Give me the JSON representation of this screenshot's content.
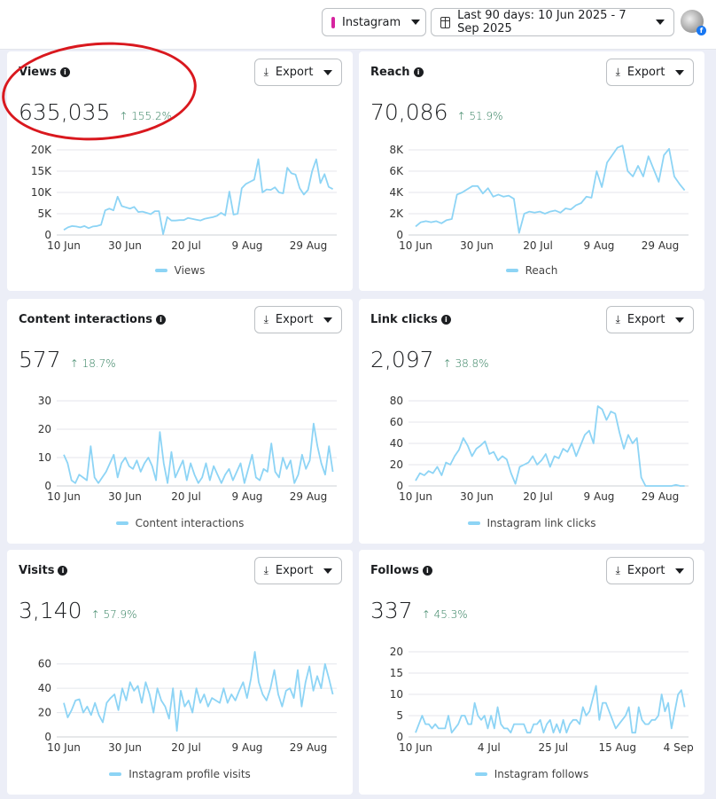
{
  "topbar": {
    "platform": "Instagram",
    "date_range": "Last 90 days: 10 Jun 2025 - 7 Sep 2025"
  },
  "export_label": "Export",
  "line_color": "#8dd4f5",
  "cards": [
    {
      "title": "Views",
      "value": "635,035",
      "delta": "↑ 155.2%",
      "legend": "Views",
      "chart_data": {
        "type": "line",
        "yticks": [
          "0",
          "5K",
          "10K",
          "15K",
          "20K"
        ],
        "ylim": [
          0,
          20
        ],
        "xticks": [
          "10 Jun",
          "30 Jun",
          "20 Jul",
          "9 Aug",
          "29 Aug"
        ],
        "xtick_days": [
          0,
          20,
          40,
          60,
          80
        ],
        "values": [
          1.2,
          1.8,
          2.1,
          2.0,
          1.8,
          2.1,
          1.6,
          2.0,
          2.1,
          2.4,
          5.8,
          6.2,
          5.8,
          9.0,
          6.8,
          6.5,
          6.2,
          6.6,
          5.4,
          5.5,
          5.2,
          4.9,
          5.6,
          5.6,
          0.2,
          4.2,
          3.4,
          3.4,
          3.5,
          3.5,
          4.0,
          3.8,
          3.6,
          3.4,
          3.8,
          4.0,
          4.2,
          4.5,
          5.2,
          4.6,
          10.2,
          4.8,
          5.0,
          11.0,
          12.0,
          12.5,
          13.0,
          17.8,
          10.0,
          10.7,
          10.6,
          11.2,
          10.0,
          9.8,
          15.8,
          14.5,
          14.2,
          11.0,
          9.5,
          10.6,
          15.0,
          17.8,
          12.2,
          14.3,
          11.3,
          10.8
        ]
      }
    },
    {
      "title": "Reach",
      "value": "70,086",
      "delta": "↑ 51.9%",
      "legend": "Reach",
      "chart_data": {
        "type": "line",
        "yticks": [
          "0",
          "2K",
          "4K",
          "6K",
          "8K"
        ],
        "ylim": [
          0,
          8
        ],
        "xticks": [
          "10 Jun",
          "30 Jun",
          "20 Jul",
          "9 Aug",
          "29 Aug"
        ],
        "xtick_days": [
          0,
          20,
          40,
          60,
          80
        ],
        "values": [
          0.8,
          1.2,
          1.3,
          1.2,
          1.3,
          1.1,
          1.4,
          1.5,
          3.8,
          4.0,
          4.3,
          4.6,
          4.6,
          3.9,
          4.4,
          3.6,
          3.8,
          3.6,
          3.7,
          3.4,
          0.2,
          2.0,
          2.2,
          2.1,
          2.2,
          2.0,
          2.2,
          2.3,
          2.1,
          2.5,
          2.4,
          2.8,
          3.0,
          3.6,
          3.5,
          6.0,
          4.5,
          6.8,
          7.5,
          8.2,
          8.4,
          6.0,
          5.5,
          6.5,
          5.5,
          7.4,
          6.2,
          5.0,
          7.5,
          8.1,
          5.5,
          4.8,
          4.2
        ]
      }
    },
    {
      "title": "Content interactions",
      "value": "577",
      "delta": "↑ 18.7%",
      "legend": "Content interactions",
      "chart_data": {
        "type": "line",
        "yticks": [
          "0",
          "10",
          "20",
          "30"
        ],
        "ylim": [
          0,
          30
        ],
        "xticks": [
          "10 Jun",
          "30 Jun",
          "20 Jul",
          "9 Aug",
          "29 Aug"
        ],
        "xtick_days": [
          0,
          20,
          40,
          60,
          80
        ],
        "values": [
          11,
          8,
          2,
          1,
          4,
          3,
          2,
          14,
          3,
          1,
          3,
          5,
          8,
          11,
          3,
          8,
          10,
          7,
          6,
          9,
          5,
          8,
          10,
          7,
          2,
          19,
          8,
          1,
          12,
          3,
          6,
          9,
          2,
          8,
          4,
          1,
          3,
          8,
          2,
          7,
          4,
          1,
          4,
          6,
          2,
          5,
          8,
          1,
          6,
          11,
          3,
          2,
          6,
          5,
          15,
          5,
          3,
          10,
          6,
          9,
          1,
          4,
          11,
          6,
          9,
          22,
          14,
          8,
          4,
          14,
          5
        ]
      }
    },
    {
      "title": "Link clicks",
      "value": "2,097",
      "delta": "↑ 38.8%",
      "legend": "Instagram link clicks",
      "chart_data": {
        "type": "line",
        "yticks": [
          "0",
          "20",
          "40",
          "60",
          "80"
        ],
        "ylim": [
          0,
          80
        ],
        "xticks": [
          "10 Jun",
          "30 Jun",
          "20 Jul",
          "9 Aug",
          "29 Aug"
        ],
        "xtick_days": [
          0,
          20,
          40,
          60,
          80
        ],
        "values": [
          5,
          12,
          10,
          14,
          12,
          18,
          10,
          22,
          20,
          28,
          34,
          45,
          38,
          28,
          35,
          38,
          42,
          30,
          32,
          24,
          28,
          25,
          12,
          2,
          18,
          20,
          22,
          28,
          20,
          24,
          30,
          18,
          28,
          26,
          35,
          32,
          40,
          28,
          38,
          48,
          52,
          40,
          75,
          72,
          62,
          70,
          68,
          50,
          35,
          48,
          40,
          45,
          8,
          0,
          0,
          0,
          0,
          0,
          0,
          0,
          1,
          0,
          0
        ]
      }
    },
    {
      "title": "Visits",
      "value": "3,140",
      "delta": "↑ 57.9%",
      "legend": "Instagram profile visits",
      "chart_data": {
        "type": "line",
        "yticks": [
          "0",
          "20",
          "40",
          "60"
        ],
        "ylim": [
          0,
          70
        ],
        "xticks": [
          "10 Jun",
          "30 Jun",
          "20 Jul",
          "9 Aug",
          "29 Aug"
        ],
        "xtick_days": [
          0,
          20,
          40,
          60,
          80
        ],
        "values": [
          28,
          16,
          22,
          30,
          31,
          20,
          25,
          18,
          28,
          18,
          12,
          28,
          32,
          35,
          22,
          40,
          30,
          45,
          38,
          42,
          28,
          45,
          35,
          20,
          40,
          30,
          25,
          15,
          40,
          5,
          38,
          25,
          30,
          20,
          40,
          28,
          35,
          25,
          32,
          30,
          28,
          40,
          28,
          35,
          30,
          38,
          45,
          32,
          48,
          70,
          45,
          35,
          30,
          40,
          55,
          35,
          25,
          38,
          40,
          32,
          55,
          25,
          45,
          58,
          38,
          50,
          40,
          60,
          48,
          35
        ]
      }
    },
    {
      "title": "Follows",
      "value": "337",
      "delta": "↑ 45.3%",
      "legend": "Instagram follows",
      "chart_data": {
        "type": "line",
        "yticks": [
          "0",
          "5",
          "10",
          "15",
          "20"
        ],
        "ylim": [
          0,
          20
        ],
        "xticks": [
          "10 Jun",
          "4 Jul",
          "25 Jul",
          "15 Aug",
          "4 Sep"
        ],
        "xtick_days": [
          0,
          24,
          45,
          66,
          86
        ],
        "values": [
          1,
          3,
          5,
          3,
          3,
          2,
          3,
          2,
          2,
          2,
          5,
          1,
          2,
          3,
          5,
          5,
          3,
          3,
          8,
          5,
          4,
          5,
          2,
          5,
          2,
          7,
          3,
          2,
          2,
          1,
          3,
          3,
          3,
          3,
          1,
          1,
          3,
          3,
          4,
          1,
          3,
          4,
          1,
          3,
          1,
          4,
          1,
          3,
          4,
          4,
          3,
          7,
          5,
          6,
          9,
          12,
          4,
          8,
          8,
          6,
          4,
          2,
          3,
          4,
          5,
          7,
          1,
          1,
          7,
          4,
          3,
          3,
          4,
          4,
          5,
          10,
          6,
          8,
          2,
          6,
          10,
          11,
          7
        ]
      }
    }
  ]
}
